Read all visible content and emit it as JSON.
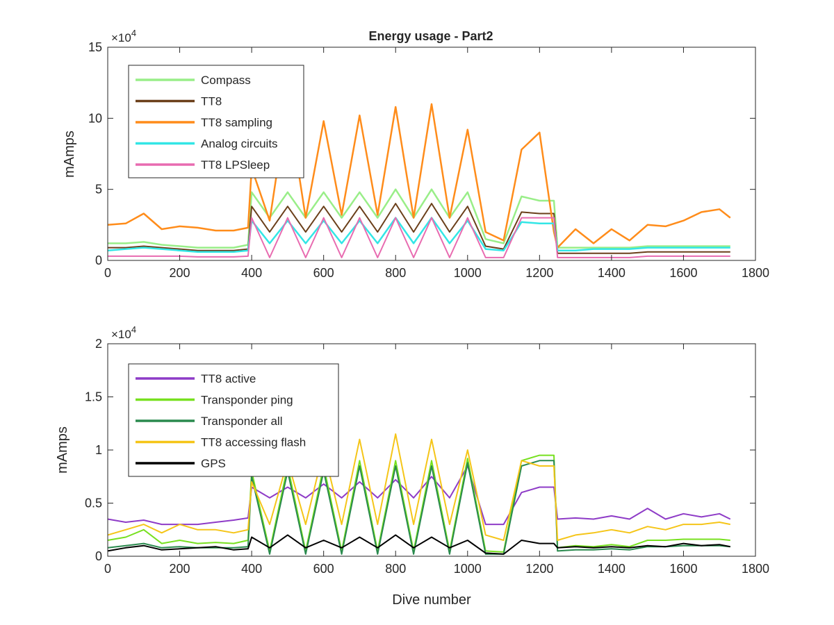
{
  "figure": {
    "title": "Energy usage - Part2",
    "xlabel": "Dive number",
    "ylabel": "mAmps"
  },
  "chart_data": [
    {
      "type": "line",
      "title": "Energy usage - Part2",
      "xlabel": "",
      "ylabel": "mAmps",
      "xlim": [
        0,
        1800
      ],
      "ylim": [
        0,
        150000
      ],
      "y_exponent_label": "×10^4",
      "x_ticks": [
        0,
        200,
        400,
        600,
        800,
        1000,
        1200,
        1400,
        1600,
        1800
      ],
      "x_tick_labels": [
        "0",
        "200",
        "400",
        "600",
        "800",
        "1000",
        "1200",
        "1400",
        "1600",
        "1800"
      ],
      "y_ticks": [
        0,
        50000,
        100000,
        150000
      ],
      "y_tick_labels": [
        "0",
        "5",
        "10",
        "15"
      ],
      "legend_position": "top-left",
      "grid": false,
      "x": [
        0,
        50,
        100,
        150,
        200,
        250,
        300,
        350,
        390,
        400,
        450,
        500,
        550,
        600,
        650,
        700,
        750,
        800,
        850,
        900,
        950,
        1000,
        1050,
        1100,
        1150,
        1200,
        1240,
        1250,
        1300,
        1350,
        1400,
        1450,
        1500,
        1550,
        1600,
        1650,
        1700,
        1730
      ],
      "series": [
        {
          "name": "Compass",
          "color": "#99ee88",
          "width": 2.5,
          "values": [
            12000,
            12000,
            13000,
            11000,
            10000,
            9000,
            9000,
            9000,
            11000,
            48000,
            30000,
            48000,
            30000,
            48000,
            30000,
            48000,
            30000,
            50000,
            30000,
            50000,
            30000,
            48000,
            15000,
            12000,
            45000,
            42000,
            42000,
            9000,
            9000,
            9000,
            9000,
            9000,
            10000,
            10000,
            10000,
            10000,
            10000,
            10000
          ]
        },
        {
          "name": "TT8",
          "color": "#6b3f1a",
          "width": 2,
          "values": [
            9000,
            9000,
            10000,
            9000,
            8000,
            7000,
            7000,
            7000,
            8000,
            38000,
            20000,
            38000,
            20000,
            38000,
            20000,
            38000,
            20000,
            40000,
            20000,
            40000,
            20000,
            38000,
            10000,
            8000,
            34000,
            33000,
            33000,
            5000,
            5000,
            5000,
            5000,
            5000,
            6000,
            6000,
            6000,
            6000,
            6000,
            6000
          ]
        },
        {
          "name": "TT8 sampling",
          "color": "#ff8c1a",
          "width": 2.5,
          "values": [
            25000,
            26000,
            33000,
            22000,
            24000,
            23000,
            21000,
            21000,
            23000,
            65000,
            28000,
            112000,
            30000,
            98000,
            32000,
            102000,
            32000,
            108000,
            30000,
            110000,
            30000,
            92000,
            20000,
            14000,
            78000,
            90000,
            20000,
            9000,
            22000,
            12000,
            22000,
            14000,
            25000,
            24000,
            28000,
            34000,
            36000,
            30000
          ]
        },
        {
          "name": "Analog circuits",
          "color": "#33e6e6",
          "width": 2.5,
          "values": [
            7000,
            8000,
            9000,
            8000,
            7000,
            6000,
            6000,
            6000,
            7000,
            28000,
            12000,
            28000,
            12000,
            28000,
            12000,
            28000,
            12000,
            30000,
            12000,
            30000,
            12000,
            28000,
            8000,
            7000,
            27000,
            26000,
            26000,
            7000,
            7000,
            8000,
            8000,
            8000,
            9000,
            9000,
            9000,
            9000,
            9000,
            9000
          ]
        },
        {
          "name": "TT8 LPSleep",
          "color": "#e86bb0",
          "width": 2,
          "values": [
            3000,
            3000,
            3000,
            3000,
            3000,
            2500,
            2500,
            2500,
            3000,
            30000,
            2000,
            30000,
            2000,
            30000,
            2000,
            30000,
            2000,
            30000,
            2000,
            30000,
            2000,
            30000,
            2000,
            2000,
            30000,
            30000,
            30000,
            2000,
            2000,
            2000,
            2000,
            2000,
            3000,
            3000,
            3000,
            3000,
            3000,
            3000
          ]
        }
      ]
    },
    {
      "type": "line",
      "title": "",
      "xlabel": "Dive number",
      "ylabel": "mAmps",
      "xlim": [
        0,
        1800
      ],
      "ylim": [
        0,
        20000
      ],
      "y_exponent_label": "×10^4",
      "x_ticks": [
        0,
        200,
        400,
        600,
        800,
        1000,
        1200,
        1400,
        1600,
        1800
      ],
      "x_tick_labels": [
        "0",
        "200",
        "400",
        "600",
        "800",
        "1000",
        "1200",
        "1400",
        "1600",
        "1800"
      ],
      "y_ticks": [
        0,
        5000,
        10000,
        15000,
        20000
      ],
      "y_tick_labels": [
        "0",
        "0.5",
        "1",
        "1.5",
        "2"
      ],
      "legend_position": "top-left",
      "grid": false,
      "x": [
        0,
        50,
        100,
        150,
        200,
        250,
        300,
        350,
        390,
        400,
        450,
        500,
        550,
        600,
        650,
        700,
        750,
        800,
        850,
        900,
        950,
        1000,
        1050,
        1100,
        1150,
        1200,
        1240,
        1250,
        1300,
        1350,
        1400,
        1450,
        1500,
        1550,
        1600,
        1650,
        1700,
        1730
      ],
      "series": [
        {
          "name": "TT8 active",
          "color": "#8e3bc7",
          "width": 2,
          "values": [
            3500,
            3200,
            3400,
            3000,
            3000,
            3000,
            3200,
            3400,
            3600,
            6500,
            5500,
            6500,
            5500,
            6800,
            5500,
            7000,
            5500,
            7200,
            5500,
            7500,
            5500,
            8500,
            3000,
            3000,
            6000,
            6500,
            6500,
            3500,
            3600,
            3500,
            3800,
            3500,
            4500,
            3500,
            4000,
            3700,
            4000,
            3500
          ]
        },
        {
          "name": "Transponder ping",
          "color": "#77e01f",
          "width": 2,
          "values": [
            1500,
            1800,
            2500,
            1200,
            1500,
            1200,
            1300,
            1200,
            1500,
            8000,
            500,
            8500,
            500,
            8500,
            500,
            9000,
            500,
            9000,
            500,
            9000,
            500,
            9200,
            500,
            400,
            9000,
            9500,
            9500,
            800,
            1000,
            900,
            1100,
            900,
            1500,
            1500,
            1600,
            1600,
            1600,
            1500
          ]
        },
        {
          "name": "Transponder all",
          "color": "#2a8a4e",
          "width": 2,
          "values": [
            800,
            1000,
            1200,
            800,
            900,
            800,
            800,
            800,
            900,
            7500,
            200,
            8000,
            200,
            8000,
            200,
            8500,
            200,
            8500,
            200,
            8500,
            200,
            8800,
            200,
            200,
            8500,
            9000,
            9000,
            500,
            600,
            600,
            700,
            600,
            900,
            900,
            1000,
            1000,
            1000,
            900
          ]
        },
        {
          "name": "TT8 accessing flash",
          "color": "#f5c518",
          "width": 2,
          "values": [
            2000,
            2500,
            3000,
            2200,
            3000,
            2500,
            2500,
            2200,
            2500,
            7000,
            3000,
            9000,
            3000,
            10000,
            3000,
            11000,
            3000,
            11500,
            3000,
            11000,
            3000,
            10000,
            2000,
            1500,
            9000,
            8500,
            8500,
            1500,
            2000,
            2200,
            2500,
            2200,
            2800,
            2500,
            3000,
            3000,
            3200,
            3000
          ]
        },
        {
          "name": "GPS",
          "color": "#000000",
          "width": 2,
          "values": [
            500,
            800,
            1000,
            600,
            700,
            800,
            900,
            600,
            700,
            1800,
            800,
            2000,
            800,
            1500,
            800,
            1800,
            800,
            2000,
            800,
            1800,
            800,
            1500,
            300,
            200,
            1500,
            1200,
            1200,
            800,
            900,
            800,
            900,
            800,
            1000,
            900,
            1200,
            1000,
            1100,
            900
          ]
        }
      ]
    }
  ]
}
